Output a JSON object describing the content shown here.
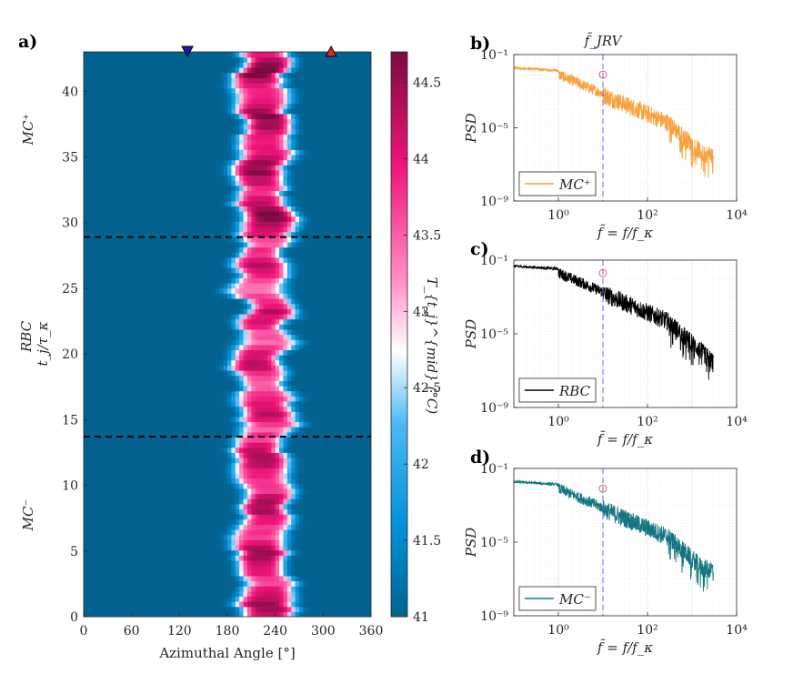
{
  "chart_data": [
    {
      "panel": "a)",
      "type": "heatmap",
      "xlabel": "Azimuthal Angle [°]",
      "ylabel": "t_j/τ_κ",
      "xlim": [
        0,
        360
      ],
      "ylim": [
        0,
        43
      ],
      "x_ticks": [
        "0",
        "60",
        "120",
        "180",
        "240",
        "300",
        "360"
      ],
      "y_ticks": [
        "0",
        "5",
        "10",
        "15",
        "20",
        "25",
        "30",
        "35",
        "40"
      ],
      "colorbar": {
        "label": "T_{t_j}^{mid} (°C)",
        "range": [
          41,
          44.7
        ],
        "ticks": [
          "41",
          "41.5",
          "42",
          "42.5",
          "43",
          "43.5",
          "44",
          "44.5"
        ],
        "colors": [
          "#03628f",
          "#0091d8",
          "#4bb9f5",
          "#ffffff",
          "#ff8cc2",
          "#f0147a",
          "#7a0b40"
        ]
      },
      "regime_labels": [
        {
          "text": "MC⁻",
          "color": "#2e8ca8"
        },
        {
          "text": "RBC",
          "color": "#000000"
        },
        {
          "text": "MC⁺",
          "color": "#f7a23c"
        }
      ],
      "boundaries_t": [
        13.7,
        28.9
      ],
      "markers": [
        {
          "shape": "down-triangle",
          "angle": 130,
          "color": "#1a1aa8"
        },
        {
          "shape": "up-triangle",
          "angle": 310,
          "color": "#e0281e"
        }
      ],
      "hot_band": {
        "center_deg": 225,
        "half_width_deg": 58
      }
    },
    {
      "panel": "b)",
      "type": "line",
      "scale": "log-log",
      "top_label": "f̃_JRV",
      "xlabel": "f̃ = f/f_κ",
      "ylabel": "PSD",
      "xlim": [
        0.1,
        10000
      ],
      "ylim": [
        1e-09,
        0.1
      ],
      "x_ticks": [
        "10⁰",
        "10²",
        "10⁴"
      ],
      "y_ticks": [
        "10⁻¹",
        "10⁻⁵",
        "10⁻⁹"
      ],
      "legend": "MC⁺",
      "color": "#f7a23c",
      "peak_marker_f": 10,
      "jrv_f": 10,
      "knee_f": 300,
      "low_freq_psd": 0.02
    },
    {
      "panel": "c)",
      "type": "line",
      "scale": "log-log",
      "xlabel": "f̃ = f/f_κ",
      "ylabel": "PSD",
      "xlim": [
        0.1,
        10000
      ],
      "ylim": [
        1e-09,
        0.1
      ],
      "x_ticks": [
        "10⁰",
        "10²",
        "10⁴"
      ],
      "y_ticks": [
        "10⁻¹",
        "10⁻⁵",
        "10⁻⁹"
      ],
      "legend": "RBC",
      "color": "#000000",
      "peak_marker_f": 10,
      "jrv_f": 10,
      "knee_f": 300,
      "low_freq_psd": 0.05
    },
    {
      "panel": "d)",
      "type": "line",
      "scale": "log-log",
      "xlabel": "f̃ = f/f_κ",
      "ylabel": "PSD",
      "xlim": [
        0.1,
        10000
      ],
      "ylim": [
        1e-09,
        0.1
      ],
      "x_ticks": [
        "10⁰",
        "10²",
        "10⁴"
      ],
      "y_ticks": [
        "10⁻¹",
        "10⁻⁵",
        "10⁻⁹"
      ],
      "legend": "MC⁻",
      "color": "#127580",
      "peak_marker_f": 10,
      "jrv_f": 10,
      "knee_f": 300,
      "low_freq_psd": 0.02
    }
  ]
}
